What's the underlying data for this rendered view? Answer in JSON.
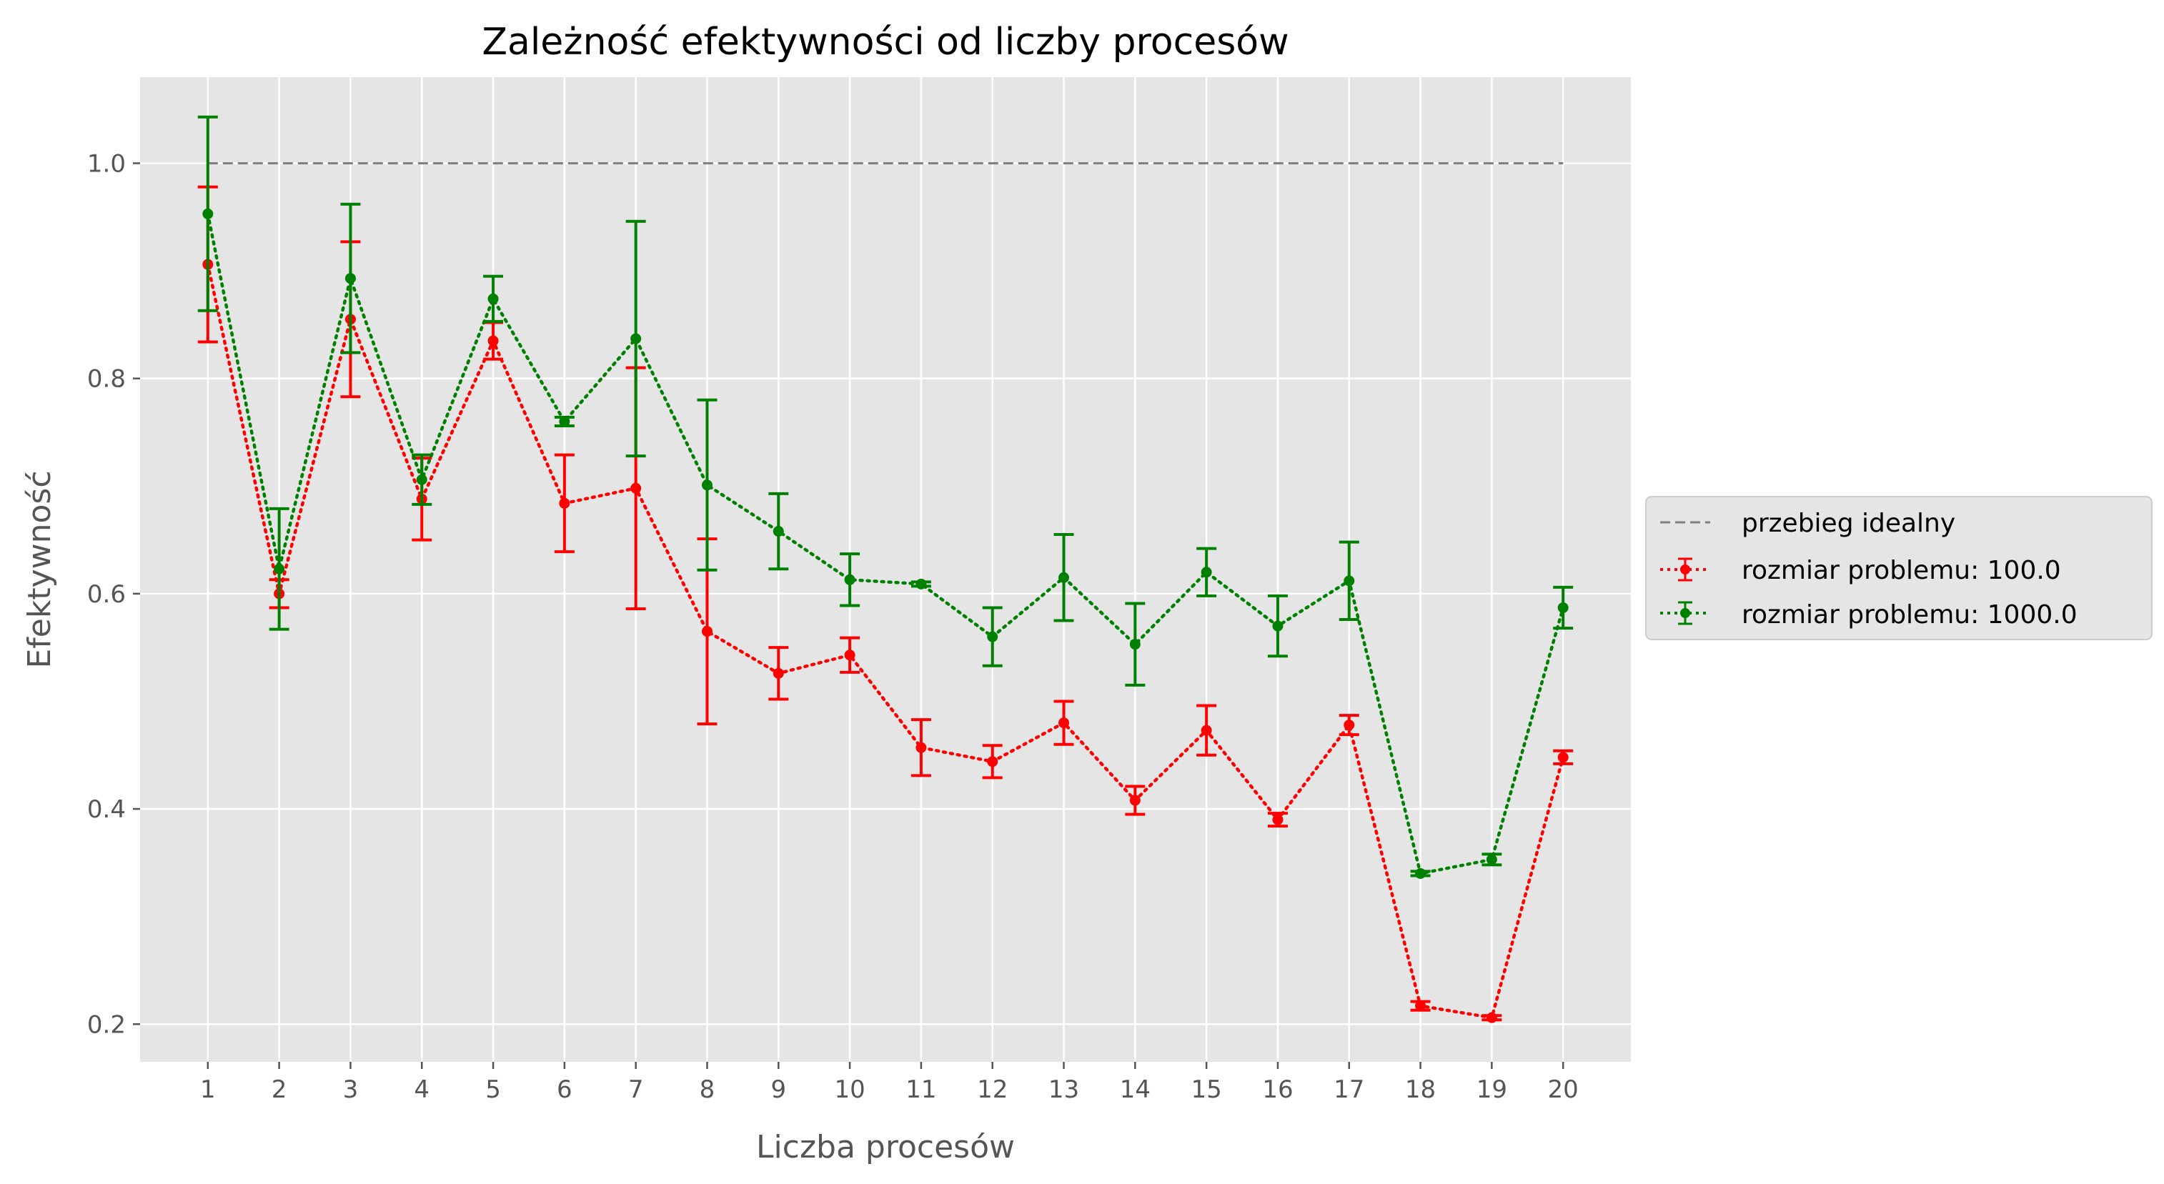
{
  "chart_data": {
    "type": "line",
    "title": "Zależność efektywności od liczby procesów",
    "xlabel": "Liczba procesów",
    "ylabel": "Efektywność",
    "x": [
      1,
      2,
      3,
      4,
      5,
      6,
      7,
      8,
      9,
      10,
      11,
      12,
      13,
      14,
      15,
      16,
      17,
      18,
      19,
      20
    ],
    "x_tick_labels": [
      "1",
      "2",
      "3",
      "4",
      "5",
      "6",
      "7",
      "8",
      "9",
      "10",
      "11",
      "12",
      "13",
      "14",
      "15",
      "16",
      "17",
      "18",
      "19",
      "20"
    ],
    "y_tick_labels": [
      "0.2",
      "0.4",
      "0.6",
      "0.8",
      "1.0"
    ],
    "y_ticks": [
      0.2,
      0.4,
      0.6,
      0.8,
      1.0
    ],
    "xlim": [
      0.05,
      20.95
    ],
    "ylim": [
      0.165,
      1.08
    ],
    "grid": true,
    "legend_position": "right",
    "ideal": {
      "name": "przebieg idealny",
      "value": 1.0,
      "color": "#808080"
    },
    "series": [
      {
        "name": "rozmiar problemu: 100.0",
        "color": "#ff0000",
        "values": [
          0.906,
          0.6,
          0.855,
          0.688,
          0.835,
          0.684,
          0.698,
          0.565,
          0.526,
          0.543,
          0.457,
          0.444,
          0.48,
          0.408,
          0.473,
          0.39,
          0.478,
          0.217,
          0.206,
          0.448
        ],
        "errors": [
          0.072,
          0.013,
          0.072,
          0.038,
          0.017,
          0.045,
          0.112,
          0.086,
          0.024,
          0.016,
          0.026,
          0.015,
          0.02,
          0.013,
          0.023,
          0.006,
          0.009,
          0.004,
          0.002,
          0.006
        ]
      },
      {
        "name": "rozmiar problemu: 1000.0",
        "color": "#008000",
        "values": [
          0.953,
          0.623,
          0.893,
          0.706,
          0.874,
          0.76,
          0.837,
          0.701,
          0.658,
          0.613,
          0.609,
          0.56,
          0.615,
          0.553,
          0.62,
          0.57,
          0.612,
          0.34,
          0.353,
          0.587
        ],
        "errors": [
          0.09,
          0.056,
          0.069,
          0.023,
          0.021,
          0.004,
          0.109,
          0.079,
          0.035,
          0.024,
          0.002,
          0.027,
          0.04,
          0.038,
          0.022,
          0.028,
          0.036,
          0.002,
          0.005,
          0.019
        ]
      }
    ]
  }
}
